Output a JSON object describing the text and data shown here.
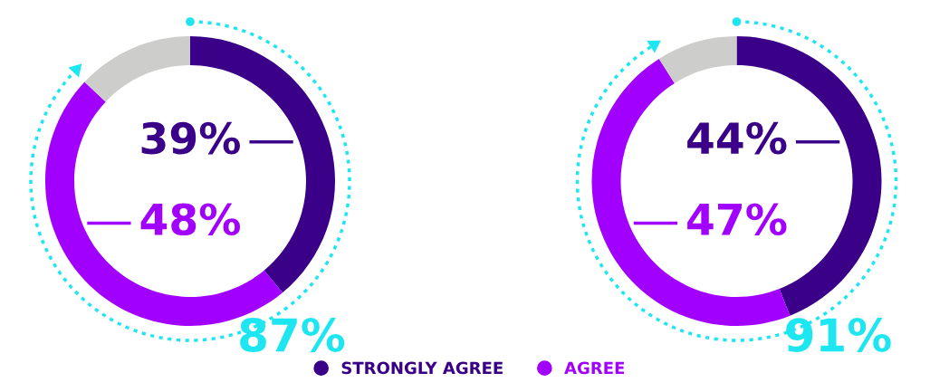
{
  "chart_data": [
    {
      "type": "donut",
      "categories": [
        "STRONGLY AGREE",
        "AGREE",
        null
      ],
      "values": [
        39,
        48,
        13
      ],
      "colors": [
        "#3a0088",
        "#a100ff",
        "#cdcdcb"
      ],
      "value_labels": [
        "39%",
        "48%",
        null
      ],
      "annotations": [
        "87%"
      ],
      "legend": "bottom"
    },
    {
      "type": "donut",
      "categories": [
        null,
        null,
        null
      ],
      "values": [
        44,
        47,
        9
      ],
      "colors": [
        "#3a0088",
        "#a100ff",
        "#cdcdcb"
      ],
      "value_labels": [
        "44%",
        "47%",
        null
      ],
      "annotations": [
        "91%"
      ]
    }
  ]
}
